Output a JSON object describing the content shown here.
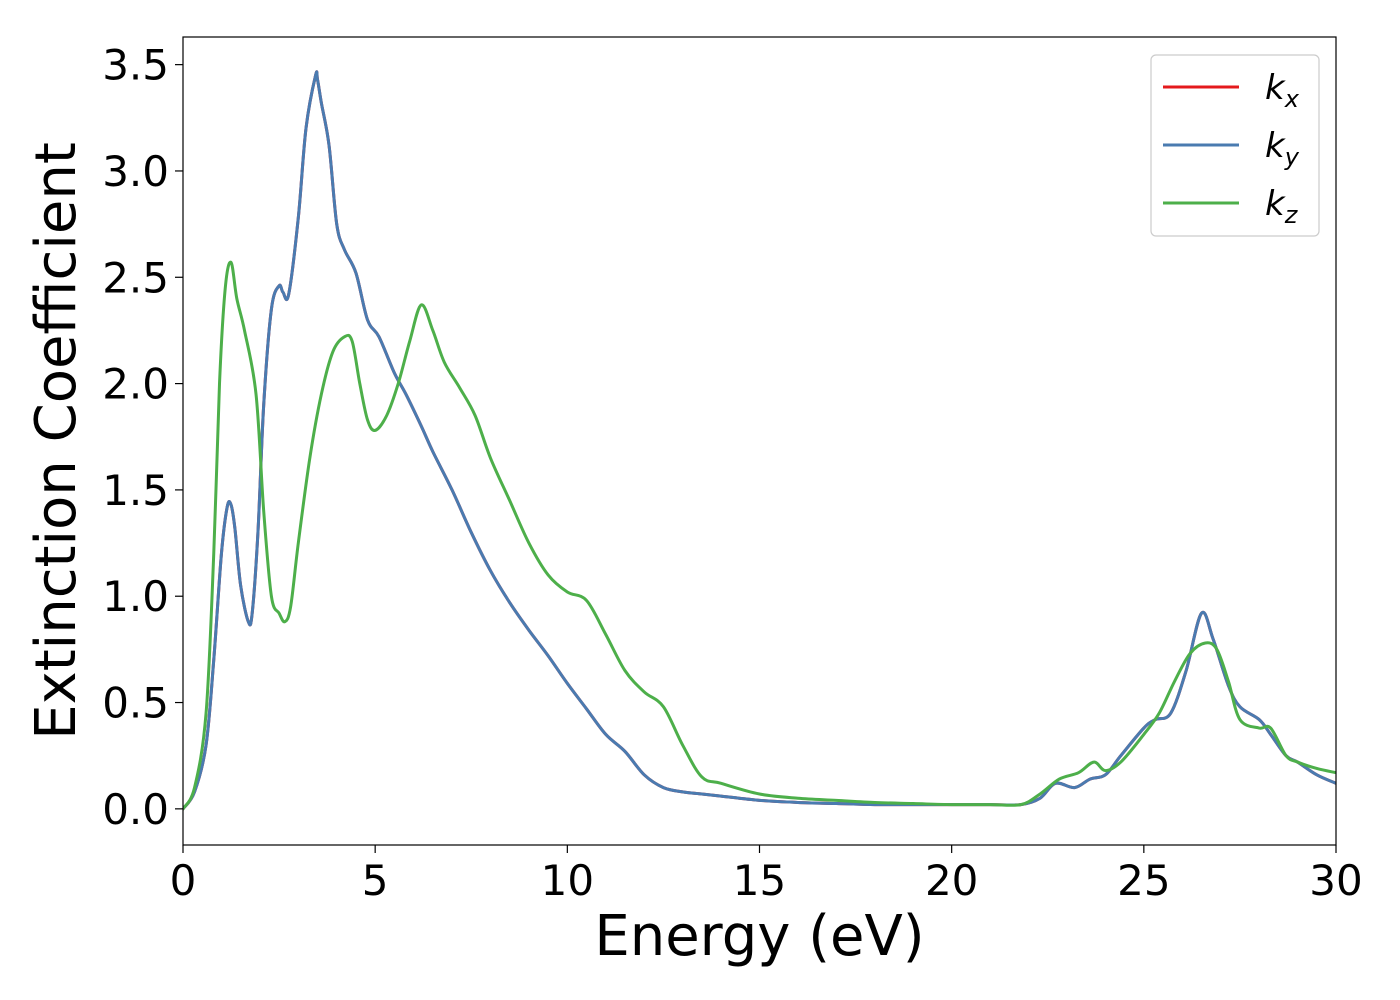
{
  "chart_data": {
    "type": "line",
    "title": "",
    "xlabel": "Energy (eV)",
    "ylabel": "Extinction Coefficient",
    "xlim": [
      0,
      30
    ],
    "ylim": [
      -0.17,
      3.63
    ],
    "xticks": [
      0,
      5,
      10,
      15,
      20,
      25,
      30
    ],
    "xtick_labels": [
      "0",
      "5",
      "10",
      "15",
      "20",
      "25",
      "30"
    ],
    "yticks": [
      0.0,
      0.5,
      1.0,
      1.5,
      2.0,
      2.5,
      3.0,
      3.5
    ],
    "ytick_labels": [
      "0.0",
      "0.5",
      "1.0",
      "1.5",
      "2.0",
      "2.5",
      "3.0",
      "3.5"
    ],
    "grid": false,
    "legend_position": "top-right",
    "series": [
      {
        "name": "k",
        "subscript": "x",
        "color": "#e41a1c",
        "x": [
          0,
          0.3,
          0.6,
          0.8,
          1.0,
          1.15,
          1.25,
          1.35,
          1.5,
          1.7,
          1.8,
          1.95,
          2.1,
          2.3,
          2.5,
          2.6,
          2.75,
          3.0,
          3.2,
          3.45,
          3.5,
          3.6,
          3.8,
          4.0,
          4.2,
          4.5,
          4.8,
          5.1,
          5.5,
          5.8,
          6.2,
          6.5,
          7.0,
          7.5,
          8.0,
          8.5,
          9.0,
          9.5,
          10.0,
          10.5,
          11.0,
          11.5,
          12.0,
          12.5,
          13.0,
          13.5,
          14.0,
          15.0,
          16.0,
          17.0,
          18.0,
          19.0,
          20.0,
          21.0,
          21.8,
          22.3,
          22.7,
          23.2,
          23.6,
          24.0,
          24.4,
          25.0,
          25.3,
          25.7,
          26.1,
          26.5,
          26.8,
          27.2,
          27.5,
          28.0,
          28.3,
          28.7,
          29.0,
          29.5,
          30.0
        ],
        "y": [
          0,
          0.08,
          0.3,
          0.7,
          1.2,
          1.42,
          1.43,
          1.32,
          1.05,
          0.88,
          0.92,
          1.3,
          1.9,
          2.35,
          2.46,
          2.43,
          2.42,
          2.78,
          3.2,
          3.45,
          3.43,
          3.32,
          3.12,
          2.75,
          2.63,
          2.52,
          2.3,
          2.22,
          2.05,
          1.95,
          1.8,
          1.68,
          1.5,
          1.3,
          1.12,
          0.97,
          0.84,
          0.72,
          0.59,
          0.47,
          0.35,
          0.27,
          0.16,
          0.1,
          0.08,
          0.07,
          0.06,
          0.04,
          0.03,
          0.025,
          0.02,
          0.02,
          0.02,
          0.02,
          0.02,
          0.05,
          0.12,
          0.1,
          0.14,
          0.16,
          0.25,
          0.38,
          0.42,
          0.45,
          0.65,
          0.92,
          0.8,
          0.58,
          0.48,
          0.42,
          0.35,
          0.25,
          0.22,
          0.16,
          0.12
        ]
      },
      {
        "name": "k",
        "subscript": "y",
        "color": "#4a7bb0",
        "x": [
          0,
          0.3,
          0.6,
          0.8,
          1.0,
          1.15,
          1.25,
          1.35,
          1.5,
          1.7,
          1.8,
          1.95,
          2.1,
          2.3,
          2.5,
          2.6,
          2.75,
          3.0,
          3.2,
          3.45,
          3.5,
          3.6,
          3.8,
          4.0,
          4.2,
          4.5,
          4.8,
          5.1,
          5.5,
          5.8,
          6.2,
          6.5,
          7.0,
          7.5,
          8.0,
          8.5,
          9.0,
          9.5,
          10.0,
          10.5,
          11.0,
          11.5,
          12.0,
          12.5,
          13.0,
          13.5,
          14.0,
          15.0,
          16.0,
          17.0,
          18.0,
          19.0,
          20.0,
          21.0,
          21.8,
          22.3,
          22.7,
          23.2,
          23.6,
          24.0,
          24.4,
          25.0,
          25.3,
          25.7,
          26.1,
          26.5,
          26.8,
          27.2,
          27.5,
          28.0,
          28.3,
          28.7,
          29.0,
          29.5,
          30.0
        ],
        "y": [
          0,
          0.08,
          0.3,
          0.7,
          1.2,
          1.42,
          1.43,
          1.32,
          1.05,
          0.88,
          0.92,
          1.3,
          1.9,
          2.35,
          2.46,
          2.43,
          2.42,
          2.78,
          3.2,
          3.45,
          3.43,
          3.32,
          3.12,
          2.75,
          2.63,
          2.52,
          2.3,
          2.22,
          2.05,
          1.95,
          1.8,
          1.68,
          1.5,
          1.3,
          1.12,
          0.97,
          0.84,
          0.72,
          0.59,
          0.47,
          0.35,
          0.27,
          0.16,
          0.1,
          0.08,
          0.07,
          0.06,
          0.04,
          0.03,
          0.025,
          0.02,
          0.02,
          0.02,
          0.02,
          0.02,
          0.05,
          0.12,
          0.1,
          0.14,
          0.16,
          0.25,
          0.38,
          0.42,
          0.45,
          0.65,
          0.92,
          0.8,
          0.58,
          0.48,
          0.42,
          0.35,
          0.25,
          0.22,
          0.16,
          0.12
        ]
      },
      {
        "name": "k",
        "subscript": "z",
        "color": "#4daf4a",
        "x": [
          0,
          0.3,
          0.6,
          0.8,
          0.95,
          1.1,
          1.25,
          1.4,
          1.6,
          1.9,
          2.1,
          2.3,
          2.5,
          2.65,
          2.8,
          3.0,
          3.3,
          3.6,
          3.9,
          4.2,
          4.4,
          4.6,
          4.8,
          5.0,
          5.3,
          5.6,
          5.9,
          6.2,
          6.5,
          6.8,
          7.2,
          7.6,
          8.0,
          8.5,
          9.0,
          9.5,
          10.0,
          10.5,
          11.0,
          11.5,
          12.0,
          12.5,
          13.0,
          13.5,
          14.0,
          15.0,
          16.0,
          17.0,
          18.0,
          19.0,
          20.0,
          21.0,
          21.8,
          22.3,
          22.8,
          23.3,
          23.7,
          24.0,
          24.4,
          25.0,
          25.4,
          25.8,
          26.2,
          26.6,
          26.9,
          27.2,
          27.5,
          28.0,
          28.3,
          28.7,
          29.0,
          29.5,
          30.0
        ],
        "y": [
          0,
          0.1,
          0.45,
          1.2,
          2.0,
          2.45,
          2.57,
          2.4,
          2.25,
          1.95,
          1.4,
          1.0,
          0.92,
          0.88,
          0.95,
          1.25,
          1.65,
          1.95,
          2.15,
          2.22,
          2.2,
          2.0,
          1.83,
          1.78,
          1.85,
          2.0,
          2.2,
          2.37,
          2.25,
          2.1,
          1.98,
          1.85,
          1.65,
          1.45,
          1.25,
          1.1,
          1.02,
          0.98,
          0.82,
          0.65,
          0.55,
          0.48,
          0.3,
          0.15,
          0.12,
          0.07,
          0.05,
          0.04,
          0.03,
          0.025,
          0.02,
          0.02,
          0.02,
          0.07,
          0.14,
          0.17,
          0.22,
          0.18,
          0.22,
          0.35,
          0.45,
          0.6,
          0.73,
          0.78,
          0.75,
          0.6,
          0.42,
          0.38,
          0.38,
          0.25,
          0.22,
          0.19,
          0.17
        ]
      }
    ]
  }
}
